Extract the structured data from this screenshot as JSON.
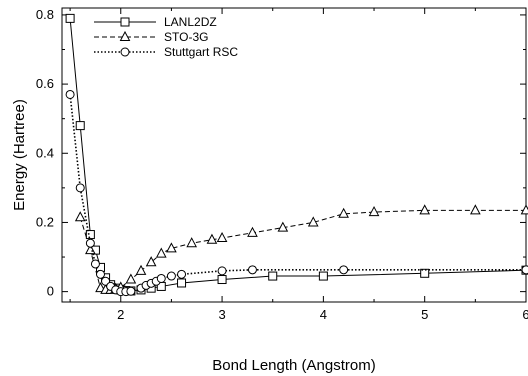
{
  "chart_data": {
    "type": "line",
    "title": "",
    "xlabel": "Bond Length (Angstrom)",
    "ylabel": "Energy (Hartree)",
    "xlim": [
      1.42,
      6.0
    ],
    "ylim": [
      -0.03,
      0.82
    ],
    "xticks": [
      2,
      3,
      4,
      5,
      6
    ],
    "xtick_labels": [
      "2",
      "3",
      "4",
      "5",
      "6"
    ],
    "yticks": [
      0,
      0.2,
      0.4,
      0.6,
      0.8
    ],
    "ytick_labels": [
      "0",
      "0.2",
      "0.4",
      "0.6",
      "0.8"
    ],
    "grid": false,
    "legend_position": "top-left",
    "series": [
      {
        "name": "LANL2DZ",
        "line_style": "solid",
        "marker": "square",
        "color": "#000000",
        "x": [
          1.5,
          1.6,
          1.7,
          1.75,
          1.8,
          1.85,
          1.9,
          1.95,
          2.0,
          2.05,
          2.1,
          2.2,
          2.3,
          2.4,
          2.6,
          3.0,
          3.5,
          4.0,
          5.0,
          6.0
        ],
        "y": [
          0.79,
          0.48,
          0.165,
          0.12,
          0.07,
          0.04,
          0.02,
          0.01,
          0.005,
          0.003,
          0.002,
          0.005,
          0.01,
          0.015,
          0.025,
          0.035,
          0.045,
          0.045,
          0.053,
          0.062
        ]
      },
      {
        "name": "STO-3G",
        "line_style": "dashed",
        "marker": "triangle",
        "color": "#000000",
        "x": [
          1.6,
          1.7,
          1.8,
          1.85,
          1.9,
          1.95,
          2.0,
          2.1,
          2.2,
          2.3,
          2.4,
          2.5,
          2.7,
          2.9,
          3.0,
          3.3,
          3.6,
          3.9,
          4.2,
          4.5,
          5.0,
          5.5,
          6.0
        ],
        "y": [
          0.215,
          0.12,
          0.01,
          0.005,
          0.005,
          0.008,
          0.012,
          0.035,
          0.06,
          0.085,
          0.11,
          0.125,
          0.14,
          0.15,
          0.155,
          0.17,
          0.185,
          0.2,
          0.225,
          0.23,
          0.235,
          0.235,
          0.235
        ]
      },
      {
        "name": "Stuttgart RSC",
        "line_style": "dotted",
        "marker": "circle",
        "color": "#000000",
        "x": [
          1.5,
          1.6,
          1.7,
          1.75,
          1.8,
          1.85,
          1.9,
          1.95,
          2.0,
          2.05,
          2.1,
          2.2,
          2.25,
          2.3,
          2.35,
          2.4,
          2.5,
          2.6,
          3.0,
          3.3,
          4.2,
          6.0
        ],
        "y": [
          0.57,
          0.3,
          0.14,
          0.08,
          0.05,
          0.03,
          0.015,
          0.005,
          0.0,
          0.0,
          0.001,
          0.01,
          0.018,
          0.024,
          0.03,
          0.038,
          0.045,
          0.05,
          0.06,
          0.063,
          0.063,
          0.063
        ]
      }
    ]
  }
}
